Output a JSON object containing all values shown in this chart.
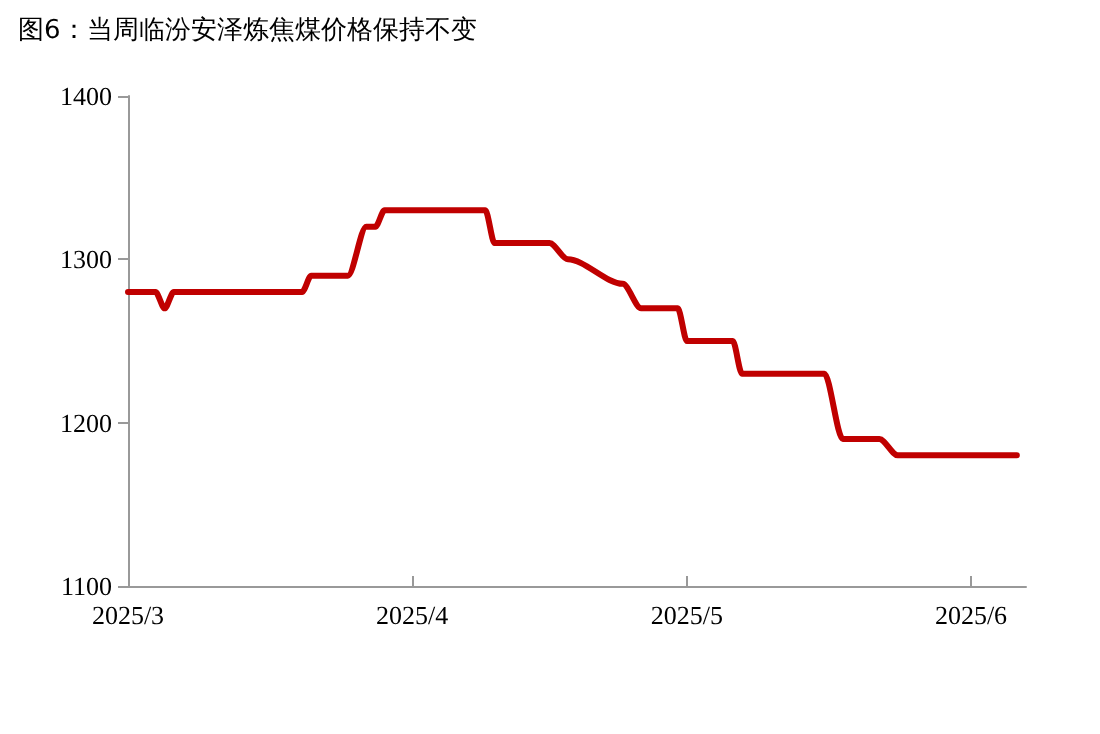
{
  "chart_data": {
    "type": "line",
    "title": "图6：当周临汾安泽炼焦煤价格保持不变",
    "x": [
      "2025-03-01",
      "2025-03-04",
      "2025-03-05",
      "2025-03-06",
      "2025-03-20",
      "2025-03-21",
      "2025-03-25",
      "2025-03-27",
      "2025-03-28",
      "2025-03-29",
      "2025-04-09",
      "2025-04-10",
      "2025-04-16",
      "2025-04-18",
      "2025-04-24",
      "2025-04-26",
      "2025-04-30",
      "2025-05-01",
      "2025-05-06",
      "2025-05-07",
      "2025-05-16",
      "2025-05-18",
      "2025-05-22",
      "2025-05-24",
      "2025-06-06"
    ],
    "series": [
      {
        "color": "#c00000",
        "values": [
          1280,
          1280,
          1270,
          1280,
          1280,
          1290,
          1290,
          1320,
          1320,
          1330,
          1330,
          1310,
          1310,
          1300,
          1285,
          1270,
          1270,
          1250,
          1250,
          1230,
          1230,
          1190,
          1190,
          1180,
          1180
        ]
      }
    ],
    "xlim": [
      "2025-03-01",
      "2025-06-07"
    ],
    "xticks": [
      {
        "value": "2025-03-01",
        "label": "2025/3"
      },
      {
        "value": "2025-04-01",
        "label": "2025/4"
      },
      {
        "value": "2025-05-01",
        "label": "2025/5"
      },
      {
        "value": "2025-06-01",
        "label": "2025/6"
      }
    ],
    "ylim": [
      1100,
      1400
    ],
    "yticks": [
      1100,
      1200,
      1300,
      1400
    ],
    "grid": false,
    "marker": "none",
    "line_style": "solid"
  }
}
